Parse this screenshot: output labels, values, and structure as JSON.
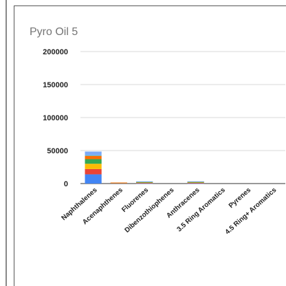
{
  "chart_data": {
    "type": "bar",
    "stacked": true,
    "title": "Pyro Oil 5",
    "xlabel": "",
    "ylabel": "",
    "ylim": [
      0,
      200000
    ],
    "yticks": [
      0,
      50000,
      100000,
      150000,
      200000
    ],
    "ytick_labels": [
      "0",
      "50000",
      "100000",
      "150000",
      "200000"
    ],
    "grid": true,
    "legend": "none",
    "categories": [
      "Naphthalenes",
      "Acenaphthenes",
      "Fluorenes",
      "Dibenzothiophenes",
      "Anthracenes",
      "3.5 Ring Aromatics",
      "Pyrenes",
      "4.5 Ring+ Aromatics"
    ],
    "series": [
      {
        "color": "#4285f4",
        "values": [
          14000,
          700,
          500,
          0,
          500,
          0,
          0,
          0
        ]
      },
      {
        "color": "#ea4335",
        "values": [
          8000,
          300,
          600,
          0,
          600,
          0,
          0,
          0
        ]
      },
      {
        "color": "#fbbc04",
        "values": [
          8000,
          200,
          600,
          0,
          700,
          0,
          0,
          0
        ]
      },
      {
        "color": "#34a853",
        "values": [
          7000,
          200,
          600,
          0,
          600,
          0,
          0,
          0
        ]
      },
      {
        "color": "#ff6d01",
        "values": [
          5000,
          100,
          500,
          0,
          500,
          0,
          0,
          0
        ]
      },
      {
        "color": "#46bdc6",
        "values": [
          1000,
          0,
          200,
          0,
          200,
          0,
          0,
          0
        ]
      },
      {
        "color": "#7baaf7",
        "values": [
          5500,
          0,
          300,
          0,
          300,
          0,
          0,
          0
        ]
      }
    ]
  }
}
